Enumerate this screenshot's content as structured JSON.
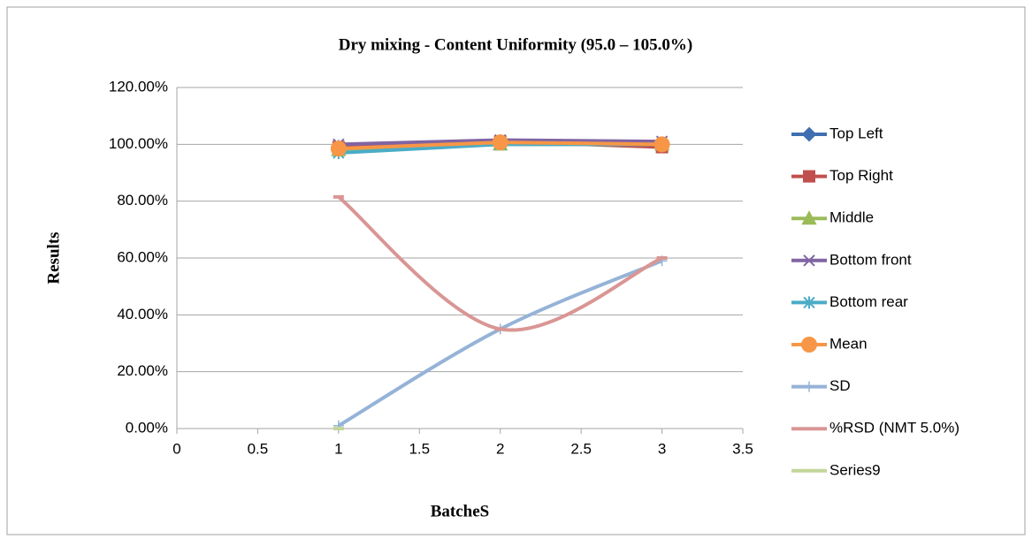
{
  "chart_data": {
    "type": "line",
    "title": "Dry mixing - Content Uniformity (95.0 – 105.0%)",
    "x_label": "BatcheS",
    "y_label": "Results",
    "x": [
      1,
      2,
      3
    ],
    "xlim": [
      0,
      3.5
    ],
    "xticks": [
      0,
      0.5,
      1,
      1.5,
      2,
      2.5,
      3,
      3.5
    ],
    "ylim": [
      0,
      120
    ],
    "yticks": [
      {
        "value": 0,
        "label": "0.00%"
      },
      {
        "value": 20,
        "label": "20.00%"
      },
      {
        "value": 40,
        "label": "40.00%"
      },
      {
        "value": 60,
        "label": "60.00%"
      },
      {
        "value": 80,
        "label": "80.00%"
      },
      {
        "value": 100,
        "label": "100.00%"
      },
      {
        "value": 120,
        "label": "120.00%"
      }
    ],
    "grid": true,
    "legend": "right",
    "series": [
      {
        "name": "Top Left",
        "color": "#3f6fb0",
        "marker": "diamond",
        "smooth": false,
        "values": [
          99,
          101,
          100
        ]
      },
      {
        "name": "Top Right",
        "color": "#c0504d",
        "marker": "square",
        "smooth": false,
        "values": [
          99,
          101,
          99
        ]
      },
      {
        "name": "Middle",
        "color": "#9bbb59",
        "marker": "triangle",
        "smooth": false,
        "values": [
          98,
          100,
          100
        ]
      },
      {
        "name": "Bottom front",
        "color": "#8064a2",
        "marker": "x",
        "smooth": false,
        "values": [
          100,
          101.5,
          101
        ]
      },
      {
        "name": "Bottom rear",
        "color": "#4bacc6",
        "marker": "asterisk",
        "smooth": false,
        "values": [
          97,
          100,
          100
        ]
      },
      {
        "name": "Mean",
        "color": "#f79646",
        "marker": "circle",
        "smooth": false,
        "values": [
          98.5,
          100.7,
          100
        ]
      },
      {
        "name": "SD",
        "color": "#95b3d7",
        "marker": "plus",
        "smooth": true,
        "values": [
          1,
          35,
          59
        ]
      },
      {
        "name": "%RSD (NMT 5.0%)",
        "color": "#d99694",
        "marker": "dash",
        "smooth": true,
        "values": [
          81.5,
          35,
          60
        ]
      },
      {
        "name": "Series9",
        "color": "#c3d69b",
        "marker": "dash",
        "smooth": false,
        "values": [
          0,
          null,
          null
        ]
      }
    ]
  }
}
